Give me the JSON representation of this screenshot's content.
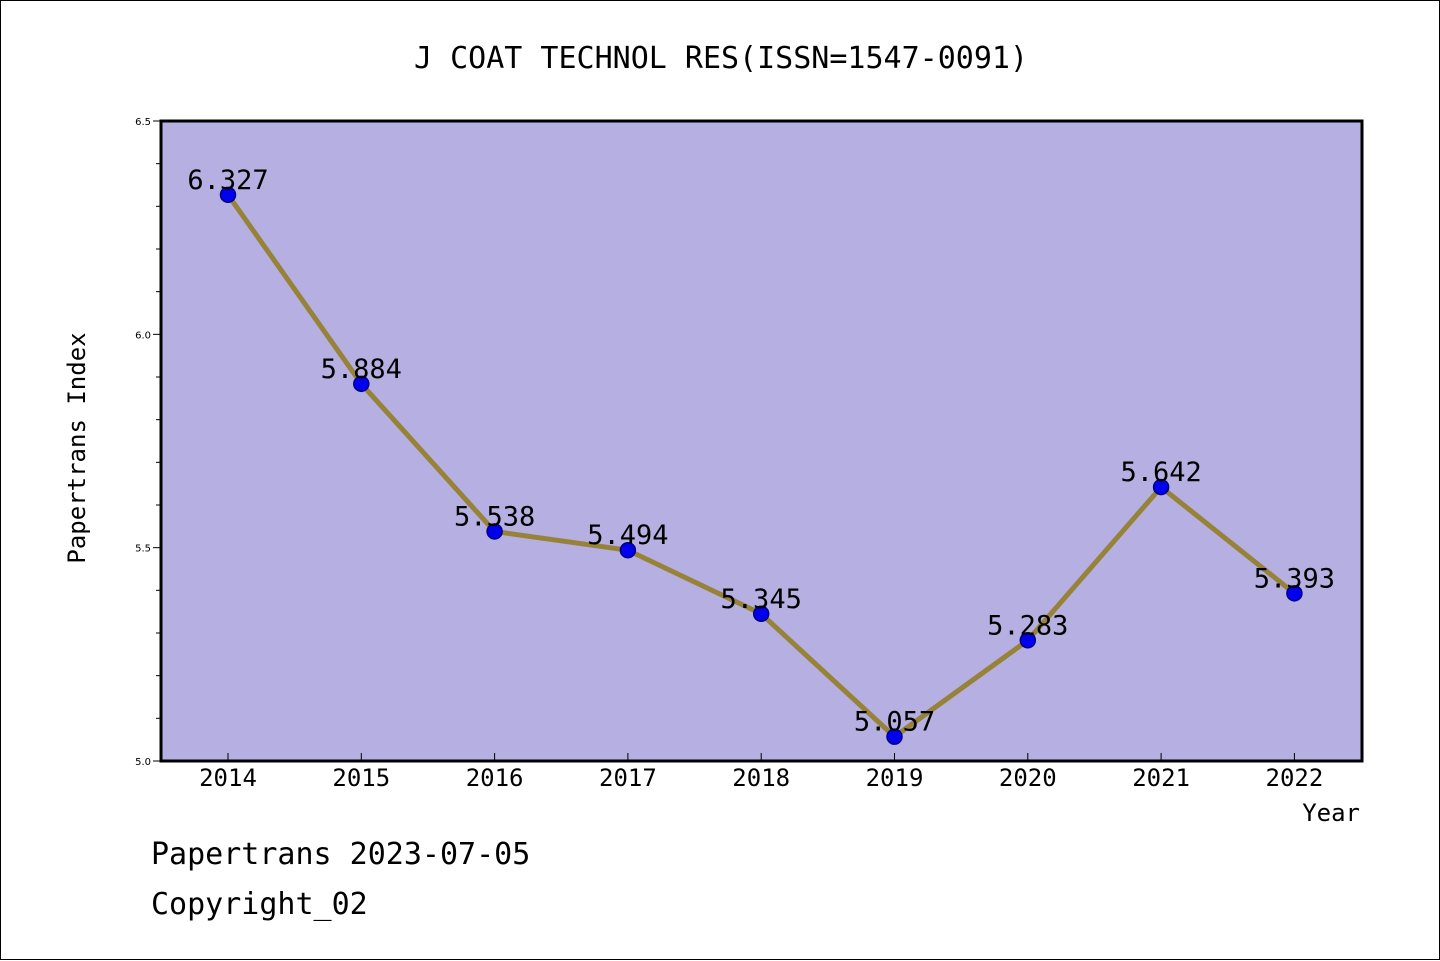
{
  "chart_data": {
    "type": "line",
    "title": "J COAT TECHNOL RES(ISSN=1547-0091)",
    "xlabel": "Year",
    "ylabel": "Papertrans Index",
    "categories": [
      "2014",
      "2015",
      "2016",
      "2017",
      "2018",
      "2019",
      "2020",
      "2021",
      "2022"
    ],
    "values": [
      6.327,
      5.884,
      5.538,
      5.494,
      5.345,
      5.057,
      5.283,
      5.642,
      5.393
    ],
    "data_labels": [
      "6.327",
      "5.884",
      "5.538",
      "5.494",
      "5.345",
      "5.057",
      "5.283",
      "5.642",
      "5.393"
    ],
    "ylim": [
      5.0,
      6.5
    ],
    "yticks": [
      5.0,
      5.5,
      6.0,
      6.5
    ],
    "ytick_labels": [
      "5.0",
      "5.5",
      "6.0",
      "6.5"
    ],
    "y_minor_step": 0.1,
    "grid": false,
    "colors": {
      "plot_background": "#b5afe2",
      "line": "#968338",
      "marker": "#0000ee",
      "marker_edge": "#000080"
    }
  },
  "footer": {
    "line1": "Papertrans 2023-07-05",
    "line2": "Copyright_02"
  }
}
